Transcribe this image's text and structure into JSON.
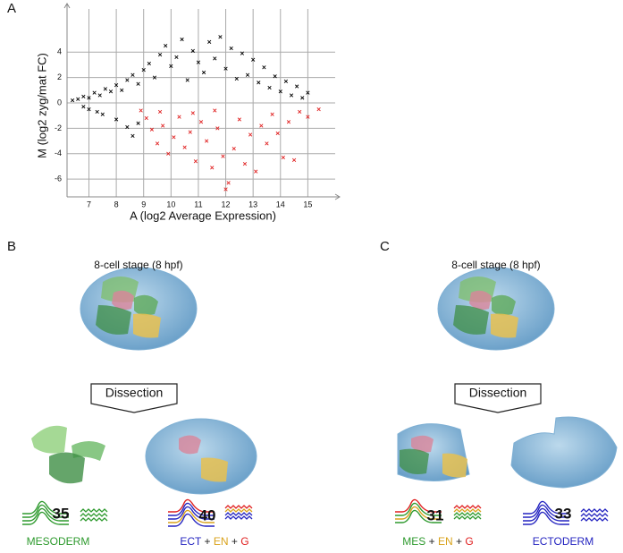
{
  "chart_data": {
    "type": "scatter",
    "label": "A",
    "x_label": "A (log2 Average Expression)",
    "y_label": "M (log2 zyg/mat FC)",
    "xlim": [
      6.2,
      16
    ],
    "ylim": [
      -7.4,
      7.4
    ],
    "xticks": [
      7,
      8,
      9,
      10,
      11,
      12,
      13,
      14,
      15
    ],
    "yticks": [
      -6,
      -4,
      -2,
      0,
      2,
      4
    ],
    "grid": true,
    "series": [
      {
        "color": "#000000",
        "x": [
          6.4,
          6.6,
          6.8,
          7.0,
          7.2,
          7.4,
          7.6,
          7.8,
          8.0,
          8.2,
          8.4,
          8.6,
          8.8,
          9.0,
          9.2,
          9.4,
          9.6,
          9.8,
          10.0,
          10.2,
          10.4,
          10.6,
          10.8,
          11.0,
          11.2,
          11.4,
          11.6,
          11.8,
          12.0,
          12.2,
          12.4,
          12.6,
          12.8,
          13.0,
          13.2,
          13.4,
          13.6,
          13.8,
          14.0,
          14.2,
          14.4,
          14.6,
          14.8,
          15.0,
          7.0,
          7.5,
          8.0,
          8.4,
          8.6,
          8.8,
          6.8,
          7.3
        ],
        "values": [
          0.2,
          0.3,
          0.5,
          0.4,
          0.8,
          0.6,
          1.1,
          0.9,
          1.4,
          1.0,
          1.8,
          2.2,
          1.5,
          2.6,
          3.1,
          2.0,
          3.8,
          4.5,
          2.9,
          3.6,
          5.0,
          1.8,
          4.1,
          3.2,
          2.4,
          4.8,
          3.5,
          5.2,
          2.7,
          4.3,
          1.9,
          3.9,
          2.2,
          3.4,
          1.6,
          2.8,
          1.2,
          2.1,
          0.9,
          1.7,
          0.6,
          1.3,
          0.4,
          0.8,
          -0.5,
          -0.9,
          -1.3,
          -1.9,
          -2.6,
          -1.6,
          -0.3,
          -0.7
        ]
      },
      {
        "color": "#e02020",
        "x": [
          8.9,
          9.1,
          9.3,
          9.5,
          9.7,
          9.9,
          10.1,
          10.3,
          10.5,
          10.7,
          10.9,
          11.1,
          11.3,
          11.5,
          11.7,
          11.9,
          12.1,
          12.3,
          12.5,
          12.7,
          12.9,
          13.1,
          13.3,
          13.5,
          13.7,
          13.9,
          14.1,
          14.3,
          14.5,
          14.7,
          15.0,
          15.4,
          12.0,
          10.8,
          11.6,
          9.6
        ],
        "values": [
          -0.6,
          -1.2,
          -2.1,
          -3.2,
          -1.8,
          -4.0,
          -2.7,
          -1.1,
          -3.5,
          -2.3,
          -4.6,
          -1.5,
          -3.0,
          -5.1,
          -2.0,
          -4.2,
          -6.3,
          -3.6,
          -1.3,
          -4.8,
          -2.5,
          -5.4,
          -1.8,
          -3.2,
          -0.9,
          -2.4,
          -4.3,
          -1.5,
          -4.5,
          -0.7,
          -1.1,
          -0.5,
          -6.8,
          -0.8,
          -0.6,
          -0.7
        ]
      }
    ]
  },
  "panel_B": {
    "label": "B",
    "stage": "8-cell stage (8 hpf)",
    "dissection": "Dissection",
    "left": {
      "count": 35,
      "label": [
        "MESODERM"
      ]
    },
    "right": {
      "count": 40,
      "label": [
        "ECT",
        "+",
        "EN",
        "+",
        "G"
      ]
    }
  },
  "panel_C": {
    "label": "C",
    "stage": "8-cell stage (8 hpf)",
    "dissection": "Dissection",
    "left": {
      "count": 31,
      "label": [
        "MES",
        "+",
        "EN",
        "+",
        "G"
      ]
    },
    "right": {
      "count": 33,
      "label": [
        "ECTODERM"
      ]
    }
  }
}
